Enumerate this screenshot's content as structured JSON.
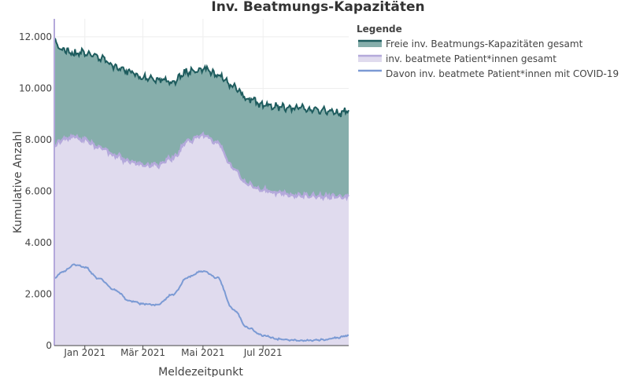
{
  "chart_data": {
    "type": "area",
    "title": "Inv. Beatmungs-Kapazitäten",
    "xlabel": "Meldezeitpunkt",
    "ylabel": "Kumulative Anzahl",
    "ylim": [
      0,
      12700
    ],
    "xlim": [
      "2020-12-01",
      "2021-09-26"
    ],
    "x_ticks": [
      {
        "date": "2021-01-01",
        "label": "Jan 2021"
      },
      {
        "date": "2021-03-01",
        "label": "Mär 2021"
      },
      {
        "date": "2021-05-01",
        "label": "Mai 2021"
      },
      {
        "date": "2021-07-01",
        "label": "Jul 2021"
      }
    ],
    "y_ticks": [
      {
        "value": 0,
        "label": "0"
      },
      {
        "value": 2000,
        "label": "2.000"
      },
      {
        "value": 4000,
        "label": "4.000"
      },
      {
        "value": 6000,
        "label": "6.000"
      },
      {
        "value": 8000,
        "label": "8.000"
      },
      {
        "value": 10000,
        "label": "10.000"
      },
      {
        "value": 12000,
        "label": "12.000"
      }
    ],
    "grid": true,
    "legend": {
      "title": "Legende",
      "placement": "right"
    },
    "series": [
      {
        "name": "Freie inv. Beatmungs-Kapazitäten gesamt",
        "stacked_total": true,
        "line_color": "#1e5c5e",
        "fill_color": "#86aeab",
        "dates": [
          "2020-12-01",
          "2020-12-11",
          "2020-12-21",
          "2021-01-01",
          "2021-01-15",
          "2021-02-01",
          "2021-02-15",
          "2021-03-01",
          "2021-03-15",
          "2021-04-01",
          "2021-04-15",
          "2021-05-01",
          "2021-05-15",
          "2021-06-01",
          "2021-06-15",
          "2021-07-01",
          "2021-07-15",
          "2021-08-01",
          "2021-08-15",
          "2021-09-01",
          "2021-09-15",
          "2021-09-26"
        ],
        "values": [
          11800,
          11500,
          11350,
          11400,
          11200,
          10800,
          10650,
          10450,
          10350,
          10250,
          10650,
          10750,
          10550,
          10050,
          9600,
          9350,
          9300,
          9250,
          9200,
          9150,
          9050,
          9100
        ]
      },
      {
        "name": "inv. beatmete Patient*innen gesamt",
        "line_color": "#b4a9db",
        "fill_color": "#e0dbee",
        "dates": [
          "2020-12-01",
          "2020-12-11",
          "2020-12-21",
          "2021-01-01",
          "2021-01-15",
          "2021-02-01",
          "2021-02-15",
          "2021-03-01",
          "2021-03-15",
          "2021-04-01",
          "2021-04-15",
          "2021-05-01",
          "2021-05-15",
          "2021-06-01",
          "2021-06-15",
          "2021-07-01",
          "2021-07-15",
          "2021-08-01",
          "2021-08-15",
          "2021-09-01",
          "2021-09-15",
          "2021-09-26"
        ],
        "values": [
          7800,
          8050,
          8100,
          8000,
          7700,
          7400,
          7150,
          7050,
          7000,
          7300,
          7950,
          8150,
          7900,
          6900,
          6300,
          6050,
          5950,
          5850,
          5850,
          5800,
          5800,
          5750
        ]
      },
      {
        "name": "Davon inv. beatmete Patient*innen mit COVID-19",
        "line_color": "#7b9ad4",
        "dates": [
          "2020-12-01",
          "2020-12-11",
          "2020-12-21",
          "2021-01-01",
          "2021-01-15",
          "2021-02-01",
          "2021-02-15",
          "2021-03-01",
          "2021-03-15",
          "2021-04-01",
          "2021-04-15",
          "2021-05-01",
          "2021-05-15",
          "2021-06-01",
          "2021-06-15",
          "2021-07-01",
          "2021-07-15",
          "2021-08-01",
          "2021-08-15",
          "2021-09-01",
          "2021-09-15",
          "2021-09-26"
        ],
        "values": [
          2650,
          2900,
          3150,
          3050,
          2600,
          2150,
          1750,
          1620,
          1580,
          2000,
          2650,
          2900,
          2650,
          1400,
          700,
          400,
          260,
          210,
          200,
          230,
          300,
          400
        ]
      }
    ]
  }
}
